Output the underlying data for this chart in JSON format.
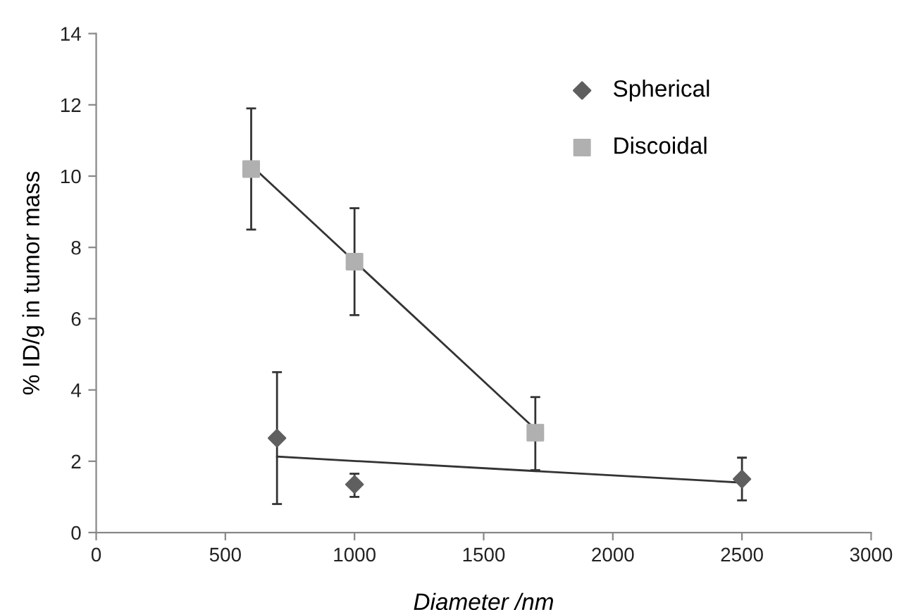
{
  "chart_data": {
    "type": "scatter",
    "xlabel": "Diameter /nm",
    "ylabel": "% ID/g in tumor mass",
    "xlim": [
      0,
      3000
    ],
    "xticks": [
      0,
      500,
      1000,
      1500,
      2000,
      2500,
      3000
    ],
    "ylim": [
      0,
      14
    ],
    "yticks": [
      0,
      2,
      4,
      6,
      8,
      10,
      12,
      14
    ],
    "grid": false,
    "legend": "top right",
    "series": [
      {
        "name": "Spherical",
        "color": "#5f5f5f",
        "marker": "diamond",
        "x": [
          700,
          1000,
          2500
        ],
        "values": [
          2.65,
          1.35,
          1.5
        ],
        "errors": [
          [
            0.8,
            4.5
          ],
          [
            1.0,
            1.65
          ],
          [
            0.9,
            2.1
          ]
        ]
      },
      {
        "name": "Discoidal",
        "color": "#b0b0b0",
        "marker": "square",
        "x": [
          600,
          1000,
          1700
        ],
        "values": [
          10.2,
          7.6,
          2.8
        ],
        "errors": [
          [
            8.5,
            11.9
          ],
          [
            6.1,
            9.1
          ],
          [
            1.75,
            3.8
          ]
        ]
      },
      {
        "type": "line",
        "color": "#333333",
        "marker": "none",
        "x": [
          700,
          2500
        ],
        "values": [
          2.13,
          1.4
        ]
      },
      {
        "type": "line",
        "color": "#333333",
        "marker": "none",
        "x": [
          600,
          1700
        ],
        "values": [
          10.3,
          2.9
        ]
      }
    ]
  }
}
